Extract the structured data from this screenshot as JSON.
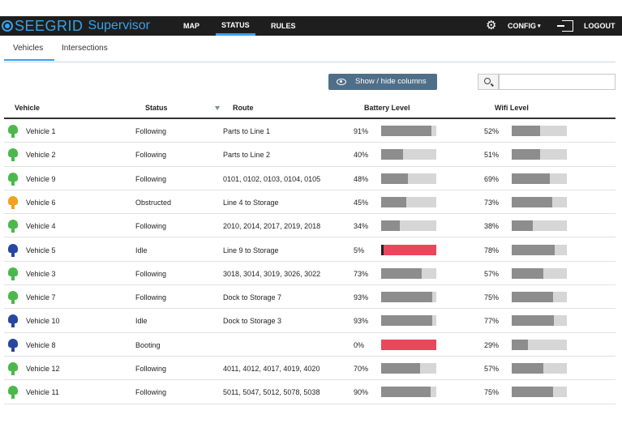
{
  "header": {
    "brand": "SEEGRID",
    "brand_sub": "Supervisor",
    "nav": [
      "MAP",
      "STATUS",
      "RULES"
    ],
    "active_nav": "STATUS",
    "config_label": "CONFIG",
    "logout_label": "LOGOUT"
  },
  "tabs": [
    "Vehicles",
    "Intersections"
  ],
  "toolbar": {
    "show_hide_label": "Show / hide columns",
    "search_value": ""
  },
  "colors": {
    "following": "#4cb84c",
    "obstructed": "#f2a21e",
    "idle": "#2747a0",
    "booting": "#2747a0",
    "critical": "#e9475b",
    "accent": "#3aa0e8"
  },
  "table": {
    "columns": [
      "Vehicle",
      "Status",
      "Route",
      "Battery Level",
      "Wifi Level"
    ],
    "rows": [
      {
        "vehicle": "Vehicle 1",
        "status": "Following",
        "route": "Parts to Line 1",
        "battery": "91%",
        "battery_value": 91,
        "wifi": "52%",
        "wifi_value": 52
      },
      {
        "vehicle": "Vehicle 2",
        "status": "Following",
        "route": "Parts to Line 2",
        "battery": "40%",
        "battery_value": 40,
        "wifi": "51%",
        "wifi_value": 51
      },
      {
        "vehicle": "Vehicle 9",
        "status": "Following",
        "route": "0101, 0102, 0103, 0104, 0105",
        "battery": "48%",
        "battery_value": 48,
        "wifi": "69%",
        "wifi_value": 69
      },
      {
        "vehicle": "Vehicle 6",
        "status": "Obstructed",
        "route": "Line 4 to Storage",
        "battery": "45%",
        "battery_value": 45,
        "wifi": "73%",
        "wifi_value": 73
      },
      {
        "vehicle": "Vehicle 4",
        "status": "Following",
        "route": "2010, 2014, 2017, 2019, 2018",
        "battery": "34%",
        "battery_value": 34,
        "wifi": "38%",
        "wifi_value": 38
      },
      {
        "vehicle": "Vehicle 5",
        "status": "Idle",
        "route": "Line 9 to Storage",
        "battery": "5%",
        "battery_value": 5,
        "wifi": "78%",
        "wifi_value": 78
      },
      {
        "vehicle": "Vehicle 3",
        "status": "Following",
        "route": "3018, 3014, 3019, 3026, 3022",
        "battery": "73%",
        "battery_value": 73,
        "wifi": "57%",
        "wifi_value": 57
      },
      {
        "vehicle": "Vehicle 7",
        "status": "Following",
        "route": "Dock to Storage 7",
        "battery": "93%",
        "battery_value": 93,
        "wifi": "75%",
        "wifi_value": 75
      },
      {
        "vehicle": "Vehicle 10",
        "status": "Idle",
        "route": "Dock to Storage 3",
        "battery": "93%",
        "battery_value": 93,
        "wifi": "77%",
        "wifi_value": 77
      },
      {
        "vehicle": "Vehicle 8",
        "status": "Booting",
        "route": "",
        "battery": "0%",
        "battery_value": 0,
        "wifi": "29%",
        "wifi_value": 29
      },
      {
        "vehicle": "Vehicle 12",
        "status": "Following",
        "route": "4011, 4012, 4017, 4019, 4020",
        "battery": "70%",
        "battery_value": 70,
        "wifi": "57%",
        "wifi_value": 57
      },
      {
        "vehicle": "Vehicle 11",
        "status": "Following",
        "route": "5011, 5047, 5012, 5078, 5038",
        "battery": "90%",
        "battery_value": 90,
        "wifi": "75%",
        "wifi_value": 75
      }
    ]
  }
}
